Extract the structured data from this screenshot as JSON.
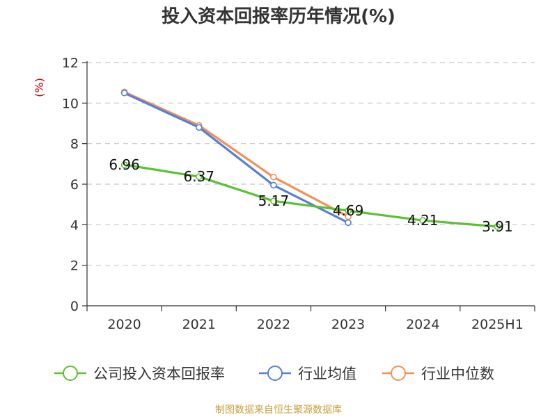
{
  "chart_data": {
    "type": "line",
    "title": "投入资本回报率历年情况(%)",
    "ylabel": "(%)",
    "categories": [
      "2020",
      "2021",
      "2022",
      "2023",
      "2024",
      "2025H1"
    ],
    "ylim": [
      0,
      12
    ],
    "yticks": [
      0,
      2,
      4,
      6,
      8,
      10,
      12
    ],
    "grid": true,
    "legend_position": "bottom",
    "series": [
      {
        "name": "公司投入资本回报率",
        "color": "#5ac232",
        "values": [
          6.96,
          6.37,
          5.17,
          4.69,
          4.21,
          3.91
        ],
        "labels": [
          "6.96",
          "6.37",
          "5.17",
          "4.69",
          "4.21",
          "3.91"
        ]
      },
      {
        "name": "行业均值",
        "color": "#5580d8",
        "values": [
          10.5,
          8.8,
          5.95,
          4.1,
          null,
          null
        ]
      },
      {
        "name": "行业中位数",
        "color": "#f59055",
        "values": [
          10.55,
          8.9,
          6.35,
          4.4,
          null,
          null
        ]
      }
    ]
  },
  "source": "制图数据来自恒生聚源数据库"
}
